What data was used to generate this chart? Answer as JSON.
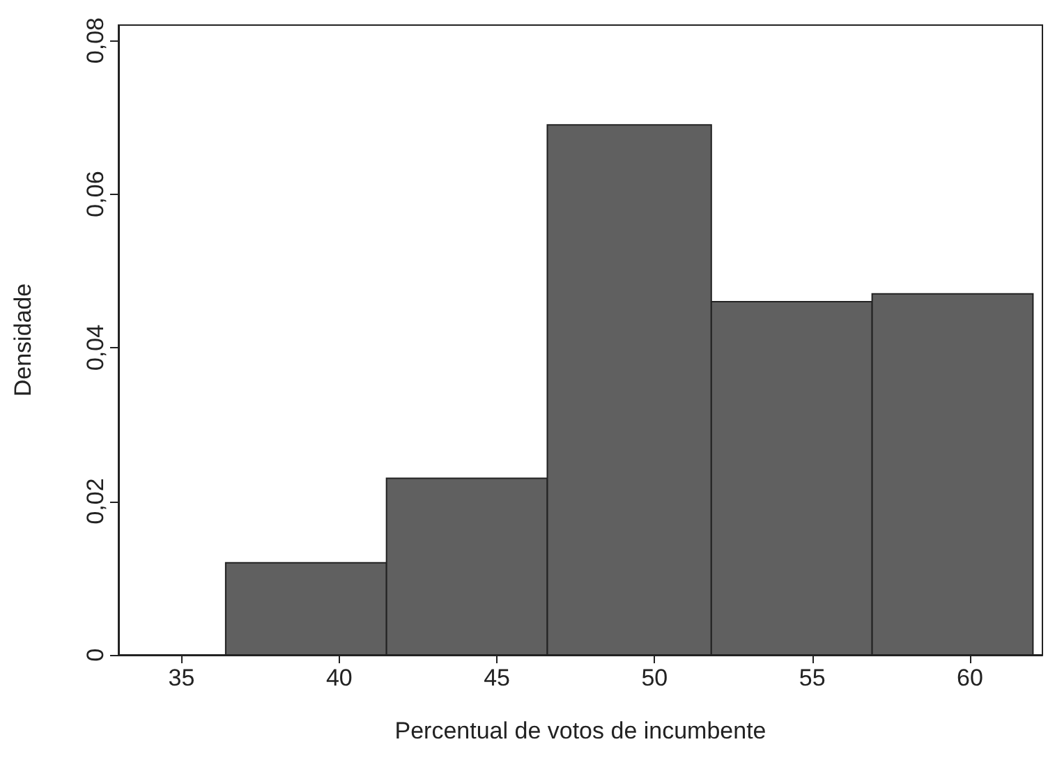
{
  "chart_data": {
    "type": "histogram",
    "xlabel": "Percentual de votos de incumbente",
    "ylabel": "Densidade",
    "bins": [
      36.4,
      41.5,
      46.6,
      51.8,
      56.9,
      62.0
    ],
    "values": [
      0.012,
      0.023,
      0.069,
      0.046,
      0.047
    ],
    "color": "#606060",
    "xlim": [
      33,
      62.3
    ],
    "xticks": [
      35,
      40,
      45,
      50,
      55,
      60
    ],
    "ylim": [
      0,
      0.082
    ],
    "yticks": [
      {
        "value": 0,
        "label": "0"
      },
      {
        "value": 0.02,
        "label": "0,02"
      },
      {
        "value": 0.04,
        "label": "0,04"
      },
      {
        "value": 0.06,
        "label": "0,06"
      },
      {
        "value": 0.08,
        "label": "0,08"
      }
    ],
    "grid": false
  }
}
